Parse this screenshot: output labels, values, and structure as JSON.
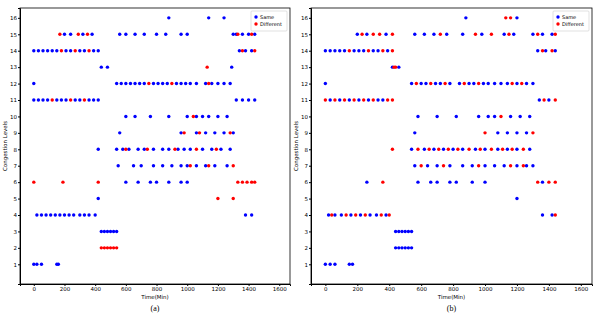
{
  "chart_data": [
    {
      "type": "scatter",
      "title": "(a)",
      "x_label": "Time(Min)",
      "y_label": "Congestion Levels",
      "xlim": [
        -90,
        1670
      ],
      "ylim": [
        -0.2,
        16.6
      ],
      "xticks": [
        0,
        200,
        400,
        600,
        800,
        1000,
        1200,
        1400,
        1600
      ],
      "yticks": [
        1,
        2,
        3,
        4,
        5,
        6,
        7,
        8,
        9,
        10,
        11,
        12,
        13,
        14,
        15,
        16
      ],
      "legend": "upper right",
      "series": [
        {
          "name": "Same",
          "color": "#0000ff",
          "marker": "circle",
          "x": [
            880,
            1140,
            1240,
            200,
            240,
            320,
            380,
            560,
            600,
            660,
            720,
            800,
            860,
            960,
            1000,
            1300,
            1320,
            1360,
            1400,
            1440,
            0,
            30,
            60,
            90,
            120,
            150,
            210,
            240,
            300,
            330,
            390,
            420,
            1340,
            1380,
            1420,
            440,
            480,
            1290,
            0,
            540,
            570,
            600,
            630,
            660,
            690,
            720,
            780,
            810,
            840,
            870,
            930,
            960,
            990,
            1020,
            1060,
            1120,
            1160,
            1200,
            1240,
            1280,
            0,
            30,
            60,
            90,
            150,
            180,
            210,
            270,
            300,
            360,
            390,
            420,
            1320,
            1360,
            1400,
            1440,
            600,
            660,
            760,
            880,
            1000,
            1060,
            1100,
            1140,
            1200,
            1260,
            560,
            960,
            1060,
            1120,
            1180,
            1240,
            1300,
            420,
            540,
            580,
            620,
            680,
            720,
            780,
            840,
            880,
            940,
            980,
            1020,
            1100,
            1160,
            1220,
            1280,
            550,
            650,
            700,
            780,
            840,
            900,
            960,
            1000,
            1060,
            1120,
            1180,
            1260,
            600,
            680,
            760,
            800,
            880,
            960,
            1000,
            420,
            20,
            50,
            80,
            110,
            140,
            170,
            200,
            230,
            260,
            300,
            330,
            360,
            400,
            1380,
            1420,
            440,
            460,
            480,
            500,
            520,
            540,
            0,
            20,
            50,
            150,
            160
          ],
          "values": [
            16,
            16,
            16,
            15,
            15,
            15,
            15,
            15,
            15,
            15,
            15,
            15,
            15,
            15,
            15,
            15,
            15,
            15,
            15,
            15,
            14,
            14,
            14,
            14,
            14,
            14,
            14,
            14,
            14,
            14,
            14,
            14,
            14,
            14,
            14,
            13,
            13,
            13,
            12,
            12,
            12,
            12,
            12,
            12,
            12,
            12,
            12,
            12,
            12,
            12,
            12,
            12,
            12,
            12,
            12,
            12,
            12,
            12,
            12,
            12,
            11,
            11,
            11,
            11,
            11,
            11,
            11,
            11,
            11,
            11,
            11,
            11,
            11,
            11,
            11,
            11,
            10,
            10,
            10,
            10,
            10,
            10,
            10,
            10,
            10,
            10,
            9,
            9,
            9,
            9,
            9,
            9,
            9,
            8,
            8,
            8,
            8,
            8,
            8,
            8,
            8,
            8,
            8,
            8,
            8,
            8,
            8,
            8,
            8,
            7,
            7,
            7,
            7,
            7,
            7,
            7,
            7,
            7,
            7,
            7,
            7,
            6,
            6,
            6,
            6,
            6,
            6,
            6,
            5,
            4,
            4,
            4,
            4,
            4,
            4,
            4,
            4,
            4,
            4,
            4,
            4,
            4,
            4,
            4,
            3,
            3,
            3,
            3,
            3,
            3,
            1,
            1,
            1,
            1,
            1
          ]
        },
        {
          "name": "Different",
          "color": "#ff0000",
          "marker": "circle",
          "x": [
            170,
            290,
            350,
            1330,
            1420,
            180,
            270,
            360,
            1360,
            1440,
            1130,
            750,
            900,
            1140,
            120,
            240,
            330,
            1040,
            980,
            1080,
            1280,
            600,
            740,
            920,
            1060,
            1190,
            1020,
            1140,
            1300,
            0,
            190,
            420,
            1330,
            1360,
            1390,
            1420,
            1440,
            1200,
            1300,
            440,
            460,
            480,
            500,
            520,
            540
          ],
          "values": [
            15,
            15,
            15,
            15,
            15,
            14,
            14,
            14,
            14,
            14,
            13,
            12,
            12,
            12,
            11,
            11,
            11,
            10,
            9,
            9,
            9,
            8,
            8,
            8,
            8,
            8,
            7,
            7,
            7,
            6,
            6,
            6,
            6,
            6,
            6,
            6,
            6,
            5,
            5,
            2,
            2,
            2,
            2,
            2,
            2
          ]
        }
      ]
    },
    {
      "type": "scatter",
      "title": "(b)",
      "x_label": "Time(Min)",
      "y_label": "Congestion Levels",
      "xlim": [
        -90,
        1670
      ],
      "ylim": [
        -0.2,
        16.6
      ],
      "xticks": [
        0,
        200,
        400,
        600,
        800,
        1000,
        1200,
        1400,
        1600
      ],
      "yticks": [
        1,
        2,
        3,
        4,
        5,
        6,
        7,
        8,
        9,
        10,
        11,
        12,
        13,
        14,
        15,
        16
      ],
      "legend": "upper right",
      "series": [
        {
          "name": "Same",
          "color": "#0000ff",
          "marker": "circle",
          "x": [
            880,
            1200,
            200,
            260,
            380,
            560,
            620,
            680,
            760,
            860,
            980,
            1120,
            1180,
            1300,
            1360,
            1420,
            0,
            30,
            60,
            90,
            120,
            180,
            210,
            240,
            300,
            330,
            390,
            1330,
            1380,
            1440,
            420,
            460,
            0,
            540,
            600,
            630,
            690,
            720,
            780,
            840,
            900,
            930,
            990,
            1020,
            1060,
            1100,
            1140,
            1200,
            1260,
            1300,
            30,
            90,
            150,
            210,
            270,
            330,
            360,
            1340,
            1400,
            580,
            700,
            820,
            960,
            1020,
            1060,
            1160,
            1220,
            1280,
            560,
            1080,
            1140,
            1200,
            1260,
            540,
            620,
            680,
            740,
            800,
            860,
            940,
            1000,
            1080,
            1140,
            1200,
            1280,
            560,
            640,
            700,
            780,
            860,
            920,
            1000,
            1060,
            1120,
            1200,
            1260,
            1300,
            260,
            580,
            660,
            700,
            780,
            820,
            920,
            1000,
            1360,
            1200,
            20,
            60,
            100,
            160,
            220,
            280,
            320,
            380,
            1360,
            1420,
            440,
            460,
            480,
            500,
            520,
            540,
            440,
            460,
            480,
            500,
            520,
            540,
            0,
            30,
            60,
            150,
            170
          ],
          "values": [
            16,
            16,
            15,
            15,
            15,
            15,
            15,
            15,
            15,
            15,
            15,
            15,
            15,
            15,
            15,
            15,
            14,
            14,
            14,
            14,
            14,
            14,
            14,
            14,
            14,
            14,
            14,
            14,
            14,
            14,
            13,
            13,
            12,
            12,
            12,
            12,
            12,
            12,
            12,
            12,
            12,
            12,
            12,
            12,
            12,
            12,
            12,
            12,
            12,
            12,
            11,
            11,
            11,
            11,
            11,
            11,
            11,
            11,
            11,
            10,
            10,
            10,
            10,
            10,
            10,
            10,
            10,
            10,
            9,
            9,
            9,
            9,
            9,
            8,
            8,
            8,
            8,
            8,
            8,
            8,
            8,
            8,
            8,
            8,
            8,
            7,
            7,
            7,
            7,
            7,
            7,
            7,
            7,
            7,
            7,
            7,
            7,
            6,
            6,
            6,
            6,
            6,
            6,
            6,
            6,
            6,
            5,
            4,
            4,
            4,
            4,
            4,
            4,
            4,
            4,
            4,
            4,
            3,
            3,
            3,
            3,
            3,
            3,
            2,
            2,
            2,
            2,
            2,
            2,
            1,
            1,
            1,
            1,
            1
          ]
        },
        {
          "name": "Different",
          "color": "#ff0000",
          "marker": "circle",
          "x": [
            1130,
            1160,
            230,
            300,
            340,
            420,
            720,
            940,
            1040,
            1150,
            1330,
            1440,
            150,
            270,
            360,
            420,
            1360,
            1420,
            430,
            440,
            570,
            660,
            750,
            870,
            960,
            1170,
            1230,
            0,
            60,
            120,
            180,
            240,
            300,
            390,
            420,
            1370,
            1440,
            1100,
            1000,
            1300,
            420,
            580,
            650,
            710,
            770,
            830,
            900,
            970,
            1040,
            1110,
            1170,
            1240,
            600,
            740,
            960,
            1160,
            1240,
            360,
            1330,
            1400,
            1440,
            40,
            130,
            190,
            250,
            350,
            400,
            1440
          ],
          "values": [
            16,
            16,
            15,
            15,
            15,
            15,
            15,
            15,
            15,
            15,
            15,
            15,
            14,
            14,
            14,
            14,
            14,
            14,
            13,
            13,
            12,
            12,
            12,
            12,
            12,
            12,
            12,
            11,
            11,
            11,
            11,
            11,
            11,
            11,
            11,
            11,
            11,
            10,
            9,
            9,
            8,
            8,
            8,
            8,
            8,
            8,
            8,
            8,
            8,
            8,
            8,
            8,
            7,
            7,
            7,
            7,
            7,
            6,
            6,
            6,
            6,
            4,
            4,
            4,
            4,
            4,
            4,
            4
          ]
        }
      ]
    }
  ]
}
